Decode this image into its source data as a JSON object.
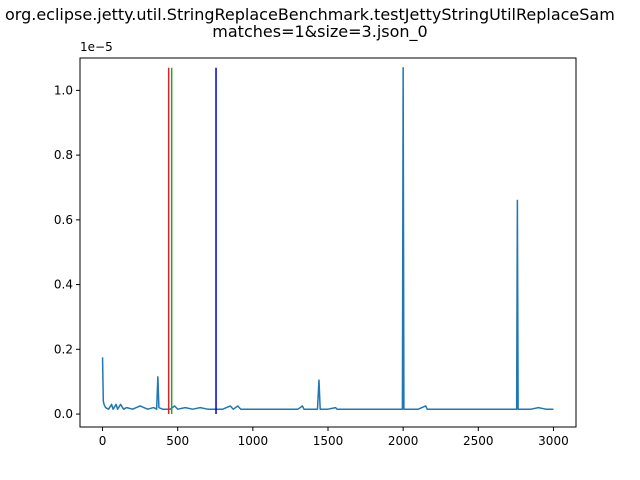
{
  "chart_data": {
    "type": "line",
    "title_line1": "org.eclipse.jetty.util.StringReplaceBenchmark.testJettyStringUtilReplaceSam",
    "title_line2": "matches=1&size=3.json_0",
    "y_offset_text": "1e−5",
    "xlim": [
      -150,
      3150
    ],
    "ylim": [
      -0.04,
      1.1
    ],
    "y_scale_note": "values in units of 1e-5",
    "x_ticks": [
      0,
      500,
      1000,
      1500,
      2000,
      2500,
      3000
    ],
    "x_tick_labels": [
      "0",
      "500",
      "1000",
      "1500",
      "2000",
      "2500",
      "3000"
    ],
    "y_ticks": [
      0.0,
      0.2,
      0.4,
      0.6,
      0.8,
      1.0
    ],
    "y_tick_labels": [
      "0.0",
      "0.2",
      "0.4",
      "0.6",
      "0.8",
      "1.0"
    ],
    "vertical_lines": [
      {
        "x": 440,
        "y_range": [
          0.0,
          1.07
        ],
        "color": "#d62728"
      },
      {
        "x": 460,
        "y_range": [
          0.0,
          1.07
        ],
        "color": "#2ca02c"
      },
      {
        "x": 755,
        "y_range": [
          0.0,
          1.07
        ],
        "color": "#0000cc"
      }
    ],
    "series": [
      {
        "color": "#1f77b4",
        "points": [
          [
            0,
            0.175
          ],
          [
            5,
            0.04
          ],
          [
            10,
            0.03
          ],
          [
            20,
            0.02
          ],
          [
            40,
            0.015
          ],
          [
            60,
            0.03
          ],
          [
            70,
            0.015
          ],
          [
            90,
            0.03
          ],
          [
            100,
            0.015
          ],
          [
            120,
            0.03
          ],
          [
            140,
            0.015
          ],
          [
            160,
            0.02
          ],
          [
            200,
            0.015
          ],
          [
            250,
            0.025
          ],
          [
            300,
            0.015
          ],
          [
            340,
            0.02
          ],
          [
            360,
            0.015
          ],
          [
            368,
            0.115
          ],
          [
            375,
            0.02
          ],
          [
            400,
            0.015
          ],
          [
            450,
            0.015
          ],
          [
            480,
            0.025
          ],
          [
            500,
            0.015
          ],
          [
            550,
            0.02
          ],
          [
            600,
            0.015
          ],
          [
            650,
            0.02
          ],
          [
            700,
            0.015
          ],
          [
            800,
            0.015
          ],
          [
            850,
            0.025
          ],
          [
            870,
            0.015
          ],
          [
            900,
            0.025
          ],
          [
            920,
            0.015
          ],
          [
            1000,
            0.015
          ],
          [
            1100,
            0.015
          ],
          [
            1200,
            0.015
          ],
          [
            1300,
            0.015
          ],
          [
            1330,
            0.025
          ],
          [
            1340,
            0.015
          ],
          [
            1430,
            0.015
          ],
          [
            1440,
            0.105
          ],
          [
            1448,
            0.015
          ],
          [
            1500,
            0.015
          ],
          [
            1550,
            0.02
          ],
          [
            1560,
            0.015
          ],
          [
            1700,
            0.015
          ],
          [
            1800,
            0.015
          ],
          [
            1950,
            0.015
          ],
          [
            1995,
            0.015
          ],
          [
            2000,
            1.07
          ],
          [
            2005,
            0.015
          ],
          [
            2100,
            0.015
          ],
          [
            2150,
            0.025
          ],
          [
            2160,
            0.015
          ],
          [
            2300,
            0.015
          ],
          [
            2500,
            0.015
          ],
          [
            2600,
            0.015
          ],
          [
            2755,
            0.015
          ],
          [
            2760,
            0.66
          ],
          [
            2765,
            0.015
          ],
          [
            2850,
            0.015
          ],
          [
            2900,
            0.02
          ],
          [
            2950,
            0.015
          ],
          [
            3000,
            0.015
          ]
        ]
      }
    ]
  }
}
